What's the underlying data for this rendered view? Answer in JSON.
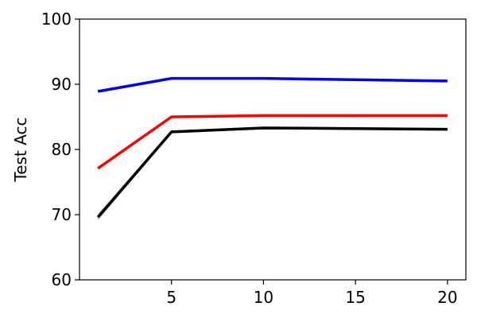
{
  "chart_data": {
    "type": "line",
    "xlabel": "",
    "ylabel": "Test Acc",
    "xlim": [
      0.0,
      21.0
    ],
    "ylim": [
      60,
      100
    ],
    "xticks": [
      5,
      10,
      15,
      20
    ],
    "yticks": [
      60,
      70,
      80,
      90,
      100
    ],
    "grid": false,
    "legend": "none",
    "series": [
      {
        "color": "#0000ff",
        "x": [
          1,
          5,
          10,
          20
        ],
        "y": [
          88.9,
          90.9,
          90.9,
          90.5
        ]
      },
      {
        "color": "#ff0000",
        "x": [
          1,
          5,
          10,
          20
        ],
        "y": [
          77.1,
          85.0,
          85.2,
          85.2
        ]
      },
      {
        "color": "#000000",
        "band": {
          "color": "#a0a0a0",
          "y_lower": [
            69.1,
            82.5,
            83.1,
            82.9
          ],
          "y_upper": [
            70.1,
            82.9,
            83.5,
            83.3
          ]
        },
        "x": [
          1,
          5,
          10,
          20
        ],
        "y": [
          69.6,
          82.7,
          83.3,
          83.1
        ]
      }
    ]
  }
}
